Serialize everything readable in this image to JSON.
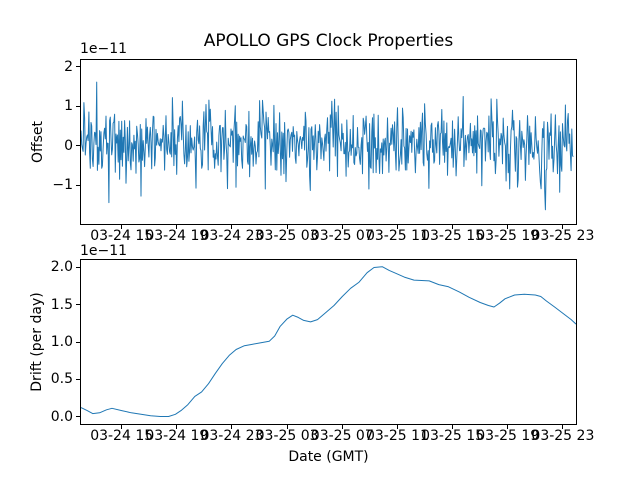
{
  "figure": {
    "title": "APOLLO GPS Clock Properties",
    "background_color": "#ffffff",
    "accent_line_color": "#1f77b4"
  },
  "chart_data": [
    {
      "id": "offset",
      "container": "plot-area-offset",
      "type": "line",
      "title": "APOLLO GPS Clock Properties",
      "ylabel": "Offset",
      "y_scale_text": "1e−11",
      "line_color": "#1f77b4",
      "ylim": [
        -1.975,
        2.175
      ],
      "yticks": [
        -1,
        0,
        1,
        2
      ],
      "ytick_labels": [
        "−1",
        "0",
        "1",
        "2"
      ],
      "xlim": [
        12.05,
        47.95
      ],
      "x_units": "hours since 03-24 00:00 GMT",
      "xticks": [
        15,
        19,
        23,
        27,
        31,
        35,
        39,
        43,
        47
      ],
      "xtick_labels": [
        "03-24 15",
        "03-24 19",
        "03-24 23",
        "03-25 03",
        "03-25 07",
        "03-25 11",
        "03-25 15",
        "03-25 19",
        "03-25 23"
      ],
      "grid": false,
      "legend": null,
      "series_description": "dense high-frequency clock-offset noise, roughly zero-mean (slightly positive), typical excursions ±1e-11, rare spikes to +2.1e-11 and −1.75e-11",
      "data_x_start": 12.05,
      "data_x_end": 47.75,
      "noise_model": {
        "n": 690,
        "seed": 20240325,
        "mean": 0.07,
        "std": 0.46,
        "spike_prob": 0.018,
        "spike_scale": 1.8,
        "clip_min": -1.78,
        "clip_max": 2.09
      }
    },
    {
      "id": "drift",
      "container": "plot-area-drift",
      "type": "line",
      "ylabel": "Drift (per day)",
      "xlabel": "Date (GMT)",
      "y_scale_text": "1e−11",
      "line_color": "#1f77b4",
      "ylim": [
        -0.1,
        2.1
      ],
      "yticks": [
        0.0,
        0.5,
        1.0,
        1.5,
        2.0
      ],
      "ytick_labels": [
        "0.0",
        "0.5",
        "1.0",
        "1.5",
        "2.0"
      ],
      "xlim": [
        12.05,
        47.95
      ],
      "x_units": "hours since 03-24 00:00 GMT",
      "xticks": [
        15,
        19,
        23,
        27,
        31,
        35,
        39,
        43,
        47
      ],
      "xtick_labels": [
        "03-24 15",
        "03-24 19",
        "03-24 23",
        "03-25 03",
        "03-25 07",
        "03-25 11",
        "03-25 15",
        "03-25 19",
        "03-25 23"
      ],
      "grid": false,
      "legend": null,
      "points": [
        [
          12.05,
          0.12
        ],
        [
          12.5,
          0.08
        ],
        [
          12.9,
          0.04
        ],
        [
          13.4,
          0.05
        ],
        [
          13.9,
          0.09
        ],
        [
          14.3,
          0.11
        ],
        [
          15.0,
          0.08
        ],
        [
          15.7,
          0.05
        ],
        [
          16.4,
          0.03
        ],
        [
          17.1,
          0.01
        ],
        [
          17.8,
          0.0
        ],
        [
          18.4,
          0.0
        ],
        [
          18.9,
          0.03
        ],
        [
          19.3,
          0.08
        ],
        [
          19.8,
          0.16
        ],
        [
          20.3,
          0.27
        ],
        [
          20.8,
          0.33
        ],
        [
          21.3,
          0.44
        ],
        [
          21.8,
          0.58
        ],
        [
          22.3,
          0.71
        ],
        [
          22.8,
          0.82
        ],
        [
          23.3,
          0.9
        ],
        [
          23.9,
          0.95
        ],
        [
          24.5,
          0.97
        ],
        [
          25.1,
          0.99
        ],
        [
          25.7,
          1.01
        ],
        [
          26.1,
          1.08
        ],
        [
          26.5,
          1.21
        ],
        [
          27.0,
          1.31
        ],
        [
          27.4,
          1.36
        ],
        [
          27.8,
          1.33
        ],
        [
          28.2,
          1.29
        ],
        [
          28.7,
          1.27
        ],
        [
          29.2,
          1.3
        ],
        [
          29.7,
          1.38
        ],
        [
          30.4,
          1.49
        ],
        [
          31.0,
          1.61
        ],
        [
          31.6,
          1.72
        ],
        [
          32.2,
          1.8
        ],
        [
          32.8,
          1.93
        ],
        [
          33.3,
          2.0
        ],
        [
          33.9,
          2.01
        ],
        [
          34.4,
          1.96
        ],
        [
          34.9,
          1.92
        ],
        [
          35.5,
          1.87
        ],
        [
          36.2,
          1.83
        ],
        [
          37.3,
          1.82
        ],
        [
          38.0,
          1.77
        ],
        [
          38.7,
          1.74
        ],
        [
          39.5,
          1.67
        ],
        [
          40.2,
          1.6
        ],
        [
          41.0,
          1.53
        ],
        [
          41.6,
          1.49
        ],
        [
          42.0,
          1.47
        ],
        [
          42.4,
          1.52
        ],
        [
          42.8,
          1.58
        ],
        [
          43.5,
          1.63
        ],
        [
          44.2,
          1.64
        ],
        [
          45.0,
          1.63
        ],
        [
          45.4,
          1.61
        ],
        [
          45.8,
          1.55
        ],
        [
          46.4,
          1.47
        ],
        [
          47.1,
          1.37
        ],
        [
          47.6,
          1.3
        ],
        [
          47.95,
          1.24
        ]
      ]
    }
  ]
}
